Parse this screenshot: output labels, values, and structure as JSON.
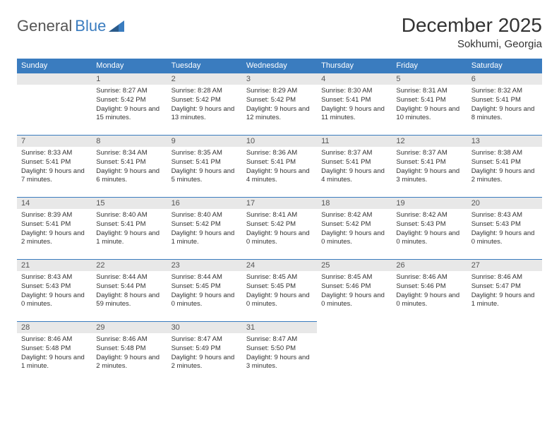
{
  "brand": {
    "part1": "General",
    "part2": "Blue"
  },
  "title": "December 2025",
  "location": "Sokhumi, Georgia",
  "colors": {
    "accent": "#3a7cbf",
    "band": "#e8e8e8",
    "bg": "#ffffff",
    "text": "#333333"
  },
  "weekdays": [
    "Sunday",
    "Monday",
    "Tuesday",
    "Wednesday",
    "Thursday",
    "Friday",
    "Saturday"
  ],
  "layout": {
    "first_weekday_index": 1,
    "days_in_month": 31,
    "weeks": 5
  },
  "days": [
    {
      "n": 1,
      "sunrise": "8:27 AM",
      "sunset": "5:42 PM",
      "daylight": "9 hours and 15 minutes."
    },
    {
      "n": 2,
      "sunrise": "8:28 AM",
      "sunset": "5:42 PM",
      "daylight": "9 hours and 13 minutes."
    },
    {
      "n": 3,
      "sunrise": "8:29 AM",
      "sunset": "5:42 PM",
      "daylight": "9 hours and 12 minutes."
    },
    {
      "n": 4,
      "sunrise": "8:30 AM",
      "sunset": "5:41 PM",
      "daylight": "9 hours and 11 minutes."
    },
    {
      "n": 5,
      "sunrise": "8:31 AM",
      "sunset": "5:41 PM",
      "daylight": "9 hours and 10 minutes."
    },
    {
      "n": 6,
      "sunrise": "8:32 AM",
      "sunset": "5:41 PM",
      "daylight": "9 hours and 8 minutes."
    },
    {
      "n": 7,
      "sunrise": "8:33 AM",
      "sunset": "5:41 PM",
      "daylight": "9 hours and 7 minutes."
    },
    {
      "n": 8,
      "sunrise": "8:34 AM",
      "sunset": "5:41 PM",
      "daylight": "9 hours and 6 minutes."
    },
    {
      "n": 9,
      "sunrise": "8:35 AM",
      "sunset": "5:41 PM",
      "daylight": "9 hours and 5 minutes."
    },
    {
      "n": 10,
      "sunrise": "8:36 AM",
      "sunset": "5:41 PM",
      "daylight": "9 hours and 4 minutes."
    },
    {
      "n": 11,
      "sunrise": "8:37 AM",
      "sunset": "5:41 PM",
      "daylight": "9 hours and 4 minutes."
    },
    {
      "n": 12,
      "sunrise": "8:37 AM",
      "sunset": "5:41 PM",
      "daylight": "9 hours and 3 minutes."
    },
    {
      "n": 13,
      "sunrise": "8:38 AM",
      "sunset": "5:41 PM",
      "daylight": "9 hours and 2 minutes."
    },
    {
      "n": 14,
      "sunrise": "8:39 AM",
      "sunset": "5:41 PM",
      "daylight": "9 hours and 2 minutes."
    },
    {
      "n": 15,
      "sunrise": "8:40 AM",
      "sunset": "5:41 PM",
      "daylight": "9 hours and 1 minute."
    },
    {
      "n": 16,
      "sunrise": "8:40 AM",
      "sunset": "5:42 PM",
      "daylight": "9 hours and 1 minute."
    },
    {
      "n": 17,
      "sunrise": "8:41 AM",
      "sunset": "5:42 PM",
      "daylight": "9 hours and 0 minutes."
    },
    {
      "n": 18,
      "sunrise": "8:42 AM",
      "sunset": "5:42 PM",
      "daylight": "9 hours and 0 minutes."
    },
    {
      "n": 19,
      "sunrise": "8:42 AM",
      "sunset": "5:43 PM",
      "daylight": "9 hours and 0 minutes."
    },
    {
      "n": 20,
      "sunrise": "8:43 AM",
      "sunset": "5:43 PM",
      "daylight": "9 hours and 0 minutes."
    },
    {
      "n": 21,
      "sunrise": "8:43 AM",
      "sunset": "5:43 PM",
      "daylight": "9 hours and 0 minutes."
    },
    {
      "n": 22,
      "sunrise": "8:44 AM",
      "sunset": "5:44 PM",
      "daylight": "8 hours and 59 minutes."
    },
    {
      "n": 23,
      "sunrise": "8:44 AM",
      "sunset": "5:45 PM",
      "daylight": "9 hours and 0 minutes."
    },
    {
      "n": 24,
      "sunrise": "8:45 AM",
      "sunset": "5:45 PM",
      "daylight": "9 hours and 0 minutes."
    },
    {
      "n": 25,
      "sunrise": "8:45 AM",
      "sunset": "5:46 PM",
      "daylight": "9 hours and 0 minutes."
    },
    {
      "n": 26,
      "sunrise": "8:46 AM",
      "sunset": "5:46 PM",
      "daylight": "9 hours and 0 minutes."
    },
    {
      "n": 27,
      "sunrise": "8:46 AM",
      "sunset": "5:47 PM",
      "daylight": "9 hours and 1 minute."
    },
    {
      "n": 28,
      "sunrise": "8:46 AM",
      "sunset": "5:48 PM",
      "daylight": "9 hours and 1 minute."
    },
    {
      "n": 29,
      "sunrise": "8:46 AM",
      "sunset": "5:48 PM",
      "daylight": "9 hours and 2 minutes."
    },
    {
      "n": 30,
      "sunrise": "8:47 AM",
      "sunset": "5:49 PM",
      "daylight": "9 hours and 2 minutes."
    },
    {
      "n": 31,
      "sunrise": "8:47 AM",
      "sunset": "5:50 PM",
      "daylight": "9 hours and 3 minutes."
    }
  ],
  "labels": {
    "sunrise": "Sunrise:",
    "sunset": "Sunset:",
    "daylight": "Daylight:"
  }
}
